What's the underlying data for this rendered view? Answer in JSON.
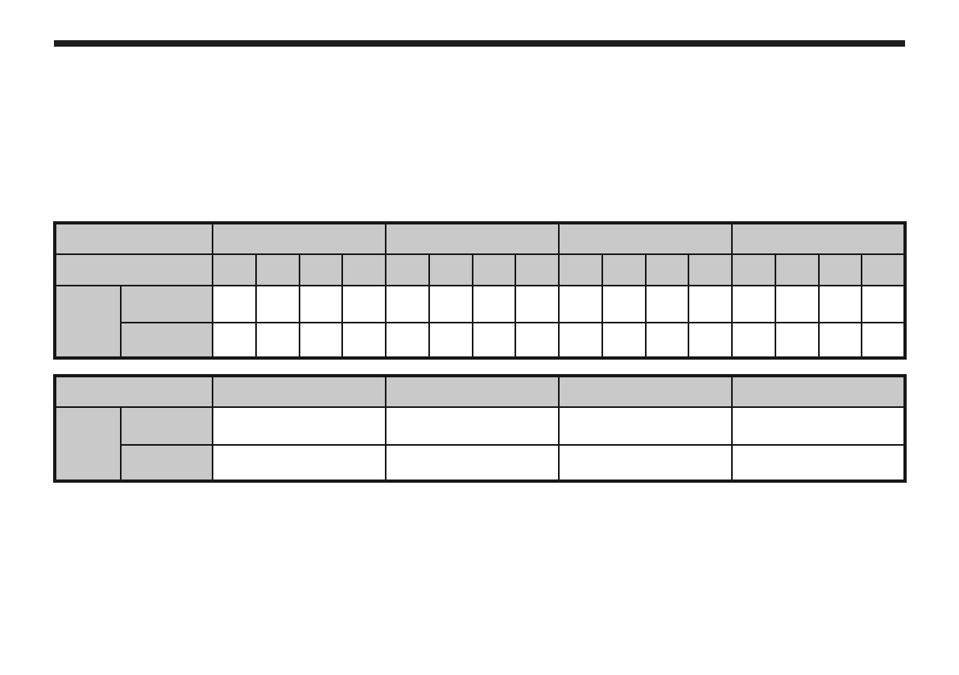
{
  "page": {
    "background": "#ffffff",
    "top_rule_color": "#1d1d1d",
    "visible_text": ""
  },
  "colors": {
    "header_fill": "#c9c9c9",
    "border": "#171717"
  },
  "upper_table": {
    "corner_header_text": "",
    "group_headers": [
      "",
      "",
      "",
      ""
    ],
    "group_count": 4,
    "subcolumns_per_group": 4,
    "subcolumn_headers": [
      "",
      "",
      "",
      "",
      "",
      "",
      "",
      "",
      "",
      "",
      "",
      "",
      "",
      "",
      "",
      ""
    ],
    "row_group_label": "",
    "row_labels": [
      "",
      ""
    ],
    "cell_values": [
      [
        "",
        "",
        "",
        "",
        "",
        "",
        "",
        "",
        "",
        "",
        "",
        "",
        "",
        "",
        "",
        ""
      ],
      [
        "",
        "",
        "",
        "",
        "",
        "",
        "",
        "",
        "",
        "",
        "",
        "",
        "",
        "",
        "",
        ""
      ]
    ]
  },
  "lower_table": {
    "corner_header_text": "",
    "column_headers": [
      "",
      "",
      "",
      ""
    ],
    "column_count": 4,
    "row_group_label": "",
    "row_labels": [
      "",
      ""
    ],
    "cell_values": [
      [
        "",
        "",
        "",
        ""
      ],
      [
        "",
        "",
        "",
        ""
      ]
    ]
  }
}
